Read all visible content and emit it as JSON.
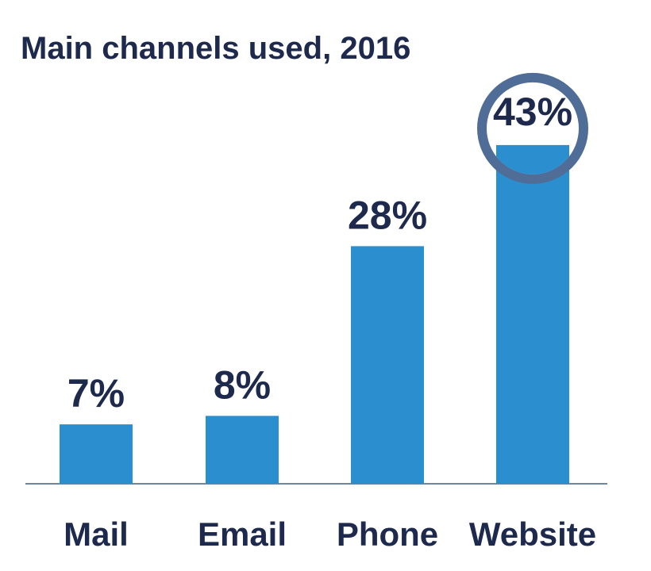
{
  "chart_data": {
    "type": "bar",
    "title": "Main channels used, 2016",
    "xlabel": "",
    "ylabel": "",
    "categories": [
      "Mail",
      "Email",
      "Phone",
      "Website"
    ],
    "values": [
      7,
      8,
      28,
      43
    ],
    "value_labels": [
      "7%",
      "8%",
      "28%",
      "43%"
    ],
    "unit": "%",
    "ylim": [
      0,
      43
    ],
    "grid": false,
    "legend": "none",
    "highlighted_category": "Website"
  },
  "colors": {
    "bar": "#2b8fcf",
    "text": "#1d2a4d",
    "axis": "#6f86a3",
    "highlight_ring": "#4f6d96",
    "background": "#ffffff"
  }
}
